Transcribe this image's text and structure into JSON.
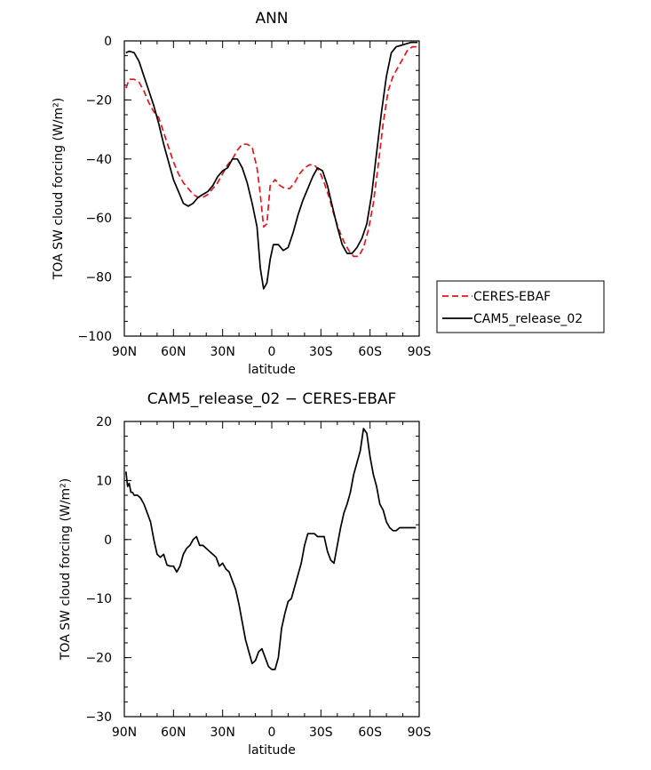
{
  "chart_data": [
    {
      "type": "line",
      "title": "ANN",
      "xlabel": "latitude",
      "ylabel": "TOA SW cloud forcing (W/m²)",
      "xlim": [
        90,
        -90
      ],
      "ylim": [
        -100,
        0
      ],
      "xticks": [
        90,
        60,
        30,
        0,
        -30,
        -60,
        -90
      ],
      "xtick_labels": [
        "90N",
        "60N",
        "30N",
        "0",
        "30S",
        "60S",
        "90S"
      ],
      "yticks": [
        0,
        -20,
        -40,
        -60,
        -80,
        -100
      ],
      "ytick_labels": [
        "0",
        "−20",
        "−40",
        "−60",
        "−80",
        "−100"
      ],
      "legend": {
        "placement": "right",
        "entries": [
          {
            "label": "CERES-EBAF",
            "color": "#e8141c",
            "style": "dashed"
          },
          {
            "label": "CAM5_release_02",
            "color": "#000000",
            "style": "solid"
          }
        ]
      },
      "series": [
        {
          "name": "CERES-EBAF",
          "color": "#e8141c",
          "dashed": true,
          "x": [
            89,
            87,
            84,
            81,
            78,
            75,
            72,
            69,
            66,
            63,
            60,
            57,
            54,
            51,
            48,
            45,
            42,
            39,
            36,
            33,
            30,
            27,
            24,
            21,
            18,
            15,
            12,
            9,
            7,
            5,
            3,
            1,
            -2,
            -5,
            -8,
            -11,
            -14,
            -17,
            -20,
            -23,
            -26,
            -29,
            -32,
            -35,
            -38,
            -41,
            -44,
            -47,
            -50,
            -53,
            -56,
            -59,
            -62,
            -65,
            -68,
            -71,
            -74,
            -77,
            -80,
            -83,
            -86,
            -89
          ],
          "y": [
            -16,
            -13,
            -13,
            -14,
            -17,
            -21,
            -24,
            -26,
            -31,
            -36,
            -41,
            -45,
            -48,
            -50,
            -52,
            -53,
            -53,
            -52,
            -50,
            -48,
            -45,
            -42,
            -40,
            -37,
            -35,
            -35,
            -36,
            -43,
            -52,
            -63,
            -62,
            -49,
            -47,
            -49,
            -50,
            -50,
            -48,
            -45,
            -43,
            -42,
            -42,
            -44,
            -48,
            -53,
            -59,
            -64,
            -68,
            -71,
            -73,
            -73,
            -70,
            -64,
            -55,
            -42,
            -28,
            -17,
            -12,
            -9,
            -6,
            -3,
            -2,
            -2
          ]
        },
        {
          "name": "CAM5_release_02",
          "color": "#000000",
          "dashed": false,
          "x": [
            89,
            87,
            84,
            81,
            78,
            75,
            72,
            69,
            66,
            63,
            60,
            57,
            54,
            51,
            48,
            45,
            42,
            39,
            36,
            33,
            30,
            27,
            24,
            21,
            18,
            15,
            12,
            9,
            7,
            5,
            3,
            1,
            -1,
            -4,
            -7,
            -10,
            -13,
            -16,
            -19,
            -22,
            -25,
            -28,
            -31,
            -34,
            -37,
            -40,
            -43,
            -46,
            -49,
            -52,
            -55,
            -58,
            -61,
            -64,
            -67,
            -70,
            -73,
            -76,
            -79,
            -82,
            -85,
            -89
          ],
          "y": [
            -4,
            -3.5,
            -4,
            -7,
            -12,
            -17,
            -22,
            -28,
            -35,
            -41,
            -47,
            -51,
            -55,
            -56,
            -55,
            -53,
            -52,
            -51,
            -49,
            -46,
            -44,
            -43,
            -40,
            -40,
            -43,
            -48,
            -55,
            -63,
            -77,
            -84,
            -82,
            -74,
            -69,
            -69,
            -71,
            -70,
            -65,
            -59,
            -54,
            -50,
            -46,
            -43,
            -44,
            -49,
            -56,
            -63,
            -69,
            -72,
            -72,
            -70,
            -67,
            -62,
            -52,
            -38,
            -24,
            -12,
            -4,
            -2,
            -1.5,
            -1,
            -0.5,
            -0.5
          ]
        }
      ]
    },
    {
      "type": "line",
      "title": "CAM5_release_02 − CERES-EBAF",
      "xlabel": "latitude",
      "ylabel": "TOA SW cloud forcing (W/m²)",
      "xlim": [
        90,
        -90
      ],
      "ylim": [
        -30,
        20
      ],
      "xticks": [
        90,
        60,
        30,
        0,
        -30,
        -60,
        -90
      ],
      "xtick_labels": [
        "90N",
        "60N",
        "30N",
        "0",
        "30S",
        "60S",
        "90S"
      ],
      "yticks": [
        20,
        10,
        0,
        -10,
        -20,
        -30
      ],
      "ytick_labels": [
        "20",
        "10",
        "0",
        "−10",
        "−20",
        "−30"
      ],
      "series": [
        {
          "color": "#000000",
          "dashed": false,
          "x": [
            89,
            88,
            87,
            86,
            85,
            84,
            82,
            80,
            78,
            76,
            74,
            72,
            70,
            68,
            66,
            64,
            62,
            60,
            58,
            56,
            54,
            52,
            50,
            48,
            46,
            44,
            42,
            40,
            38,
            36,
            34,
            32,
            30,
            28,
            26,
            24,
            22,
            20,
            18,
            16,
            14,
            12,
            10,
            8,
            6,
            4,
            2,
            0,
            -2,
            -4,
            -6,
            -8,
            -10,
            -12,
            -14,
            -16,
            -18,
            -20,
            -22,
            -24,
            -26,
            -28,
            -30,
            -32,
            -34,
            -36,
            -38,
            -40,
            -42,
            -44,
            -46,
            -48,
            -50,
            -52,
            -54,
            -56,
            -58,
            -60,
            -62,
            -64,
            -66,
            -68,
            -70,
            -72,
            -74,
            -76,
            -78,
            -80,
            -82,
            -84,
            -86,
            -88
          ],
          "y": [
            11.5,
            9,
            9.5,
            8,
            8,
            7.5,
            7.5,
            7,
            6,
            4.5,
            3,
            0,
            -2.5,
            -3,
            -2.5,
            -4.3,
            -4.5,
            -4.5,
            -5.5,
            -4.5,
            -2.5,
            -1.5,
            -1,
            0,
            0.5,
            -1,
            -1,
            -1.5,
            -2,
            -2.5,
            -3,
            -4.5,
            -4,
            -5,
            -5.5,
            -7,
            -8.5,
            -11,
            -14,
            -17,
            -19,
            -21,
            -20.5,
            -19,
            -18.5,
            -20,
            -21.5,
            -22,
            -22,
            -20,
            -15,
            -12.5,
            -10.5,
            -10,
            -8,
            -6,
            -4,
            -1,
            1,
            1,
            1,
            0.5,
            0.5,
            0.5,
            -2,
            -3.5,
            -4,
            -1,
            2,
            4.5,
            6,
            8,
            11,
            13,
            15,
            18.8,
            18,
            14,
            11,
            9,
            6,
            5,
            3,
            2,
            1.5,
            1.5,
            2,
            2,
            2,
            2,
            2,
            2
          ]
        }
      ]
    }
  ]
}
